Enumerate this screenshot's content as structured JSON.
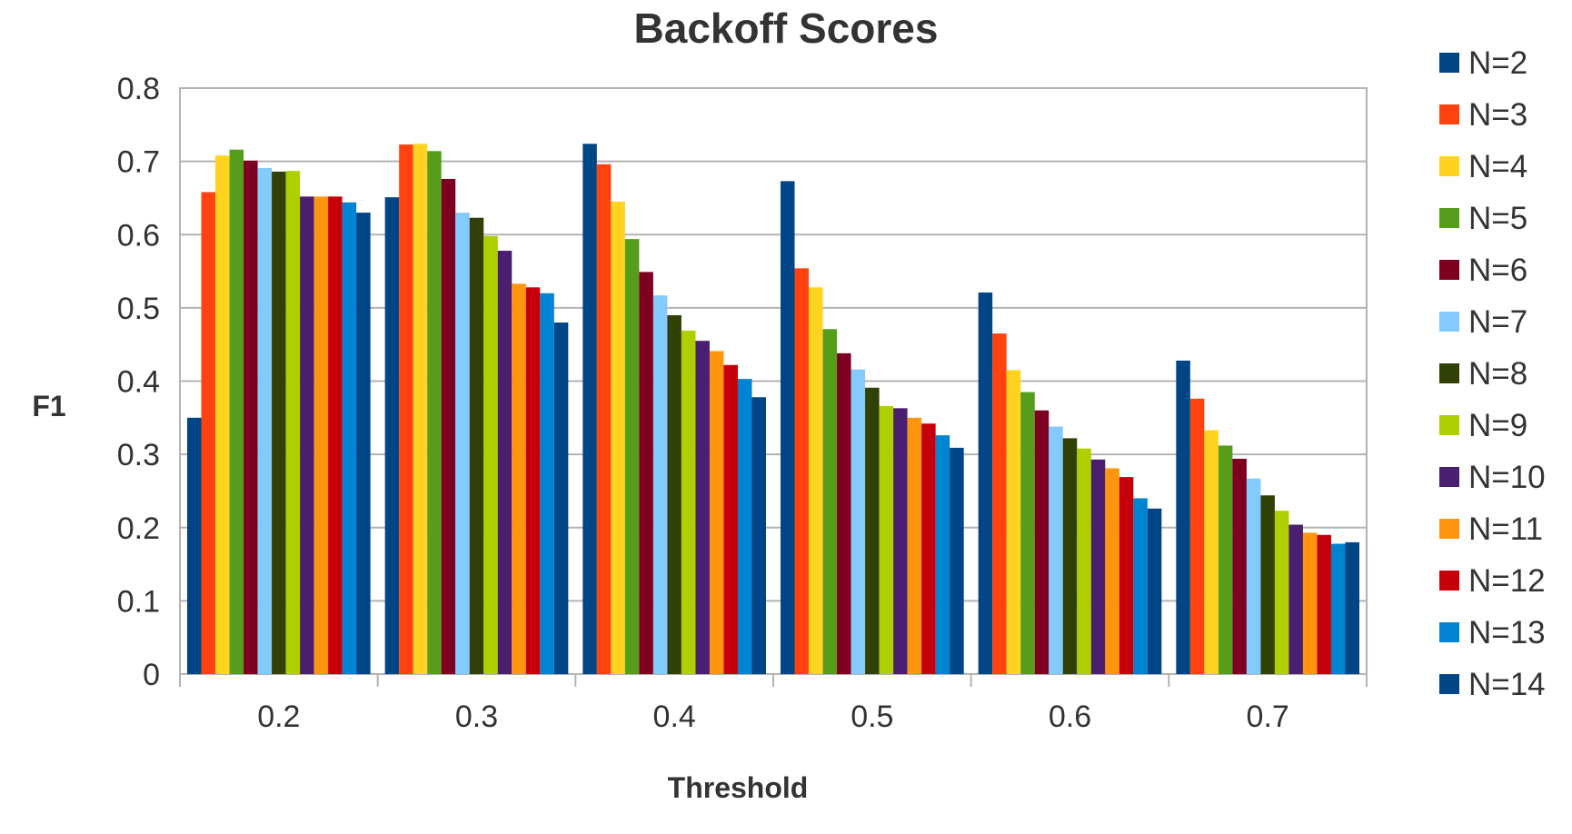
{
  "chart_data": {
    "type": "bar",
    "title": "Backoff Scores",
    "xlabel": "Threshold",
    "ylabel": "F1",
    "categories": [
      "0.2",
      "0.3",
      "0.4",
      "0.5",
      "0.6",
      "0.7"
    ],
    "ylim": [
      0,
      0.8
    ],
    "yticks": [
      "0",
      "0.1",
      "0.2",
      "0.3",
      "0.4",
      "0.5",
      "0.6",
      "0.7",
      "0.8"
    ],
    "grid": true,
    "legend_position": "right",
    "series": [
      {
        "name": "N=2",
        "color": "#004586",
        "values": [
          0.35,
          0.651,
          0.724,
          0.673,
          0.521,
          0.428
        ]
      },
      {
        "name": "N=3",
        "color": "#ff420e",
        "values": [
          0.658,
          0.723,
          0.696,
          0.554,
          0.465,
          0.376
        ]
      },
      {
        "name": "N=4",
        "color": "#ffd320",
        "values": [
          0.708,
          0.724,
          0.645,
          0.528,
          0.415,
          0.333
        ]
      },
      {
        "name": "N=5",
        "color": "#579d1c",
        "values": [
          0.716,
          0.714,
          0.594,
          0.471,
          0.385,
          0.312
        ]
      },
      {
        "name": "N=6",
        "color": "#7e0021",
        "values": [
          0.701,
          0.676,
          0.549,
          0.438,
          0.36,
          0.294
        ]
      },
      {
        "name": "N=7",
        "color": "#83caff",
        "values": [
          0.691,
          0.63,
          0.517,
          0.416,
          0.338,
          0.267
        ]
      },
      {
        "name": "N=8",
        "color": "#314004",
        "values": [
          0.686,
          0.623,
          0.49,
          0.391,
          0.322,
          0.244
        ]
      },
      {
        "name": "N=9",
        "color": "#aecf00",
        "values": [
          0.687,
          0.598,
          0.469,
          0.366,
          0.308,
          0.223
        ]
      },
      {
        "name": "N=10",
        "color": "#4b1f6f",
        "values": [
          0.652,
          0.578,
          0.455,
          0.363,
          0.293,
          0.204
        ]
      },
      {
        "name": "N=11",
        "color": "#ff950e",
        "values": [
          0.652,
          0.533,
          0.441,
          0.35,
          0.281,
          0.193
        ]
      },
      {
        "name": "N=12",
        "color": "#c5000b",
        "values": [
          0.652,
          0.528,
          0.422,
          0.342,
          0.269,
          0.19
        ]
      },
      {
        "name": "N=13",
        "color": "#0084d1",
        "values": [
          0.644,
          0.52,
          0.403,
          0.326,
          0.24,
          0.178
        ]
      },
      {
        "name": "N=14",
        "color": "#004586",
        "values": [
          0.63,
          0.48,
          0.378,
          0.309,
          0.226,
          0.18
        ]
      }
    ]
  }
}
